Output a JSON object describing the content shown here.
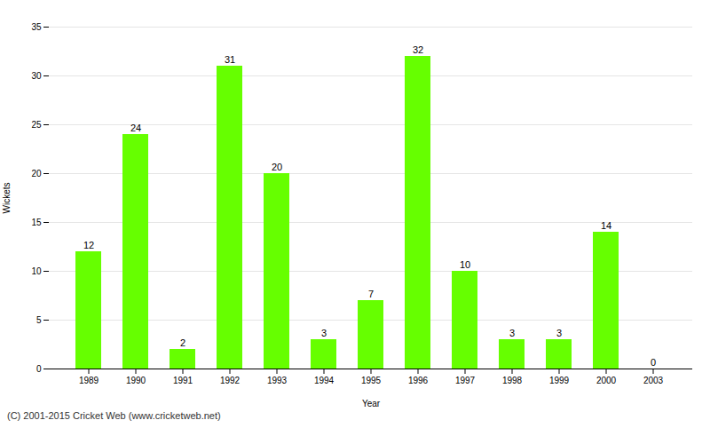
{
  "chart_data": {
    "type": "bar",
    "categories": [
      "1989",
      "1990",
      "1991",
      "1992",
      "1993",
      "1994",
      "1995",
      "1996",
      "1997",
      "1998",
      "1999",
      "2000",
      "2003"
    ],
    "values": [
      12,
      24,
      2,
      31,
      20,
      3,
      7,
      32,
      10,
      3,
      3,
      14,
      0
    ],
    "color": "#66ff00",
    "xlabel": "Year",
    "ylabel": "Wickets",
    "ylim": [
      0,
      35
    ],
    "yticks": [
      0,
      5,
      10,
      15,
      20,
      25,
      30,
      35
    ],
    "grid": true,
    "data_labels": true,
    "annotations": [
      "(C) 2001-2015 Cricket Web (www.cricketweb.net)"
    ]
  }
}
